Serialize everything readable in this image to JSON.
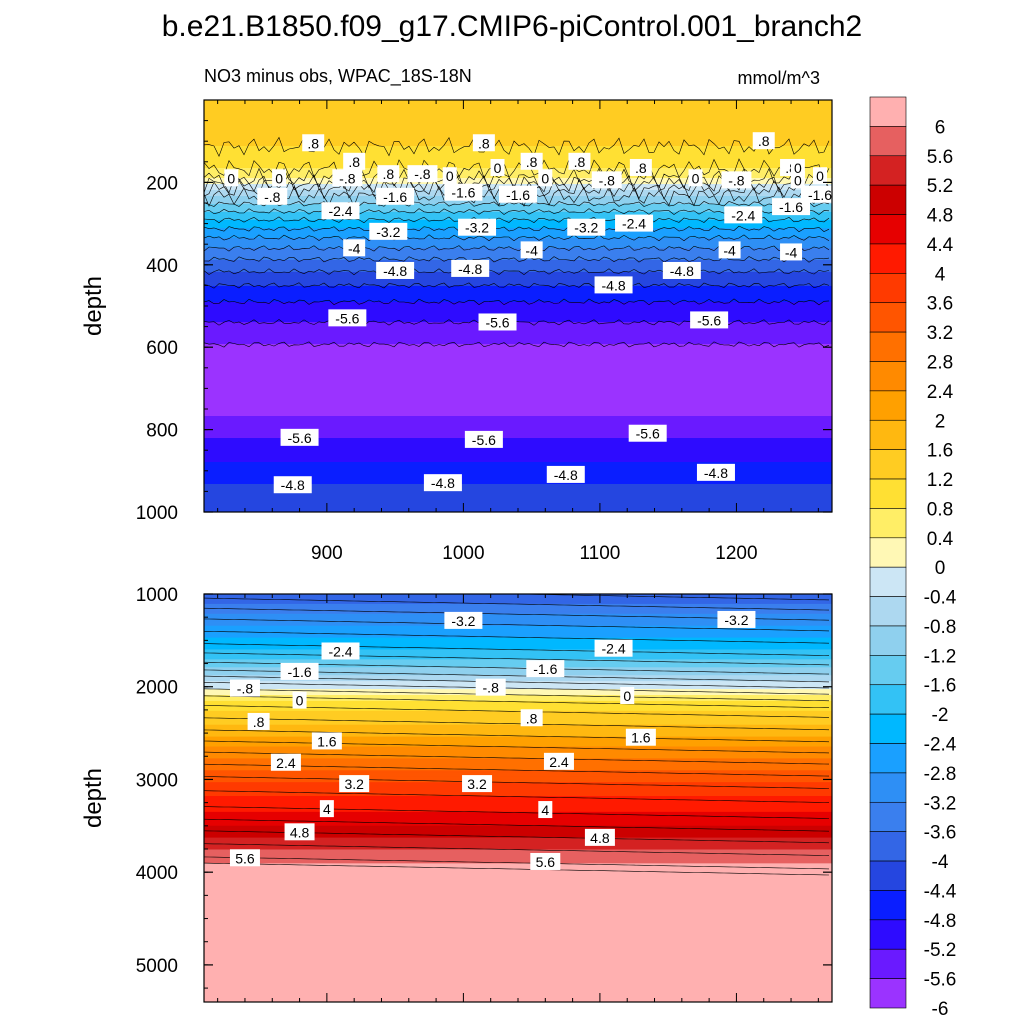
{
  "colors": {
    "palette": [
      "#9B33FF",
      "#6A1AFF",
      "#2E0BFF",
      "#0A1EFF",
      "#2546E0",
      "#3366E6",
      "#3A7FEE",
      "#2E8FF5",
      "#1AA0FF",
      "#00B8FF",
      "#33C2F5",
      "#66CCF0",
      "#8FD0EE",
      "#ADD8F0",
      "#CCE6F5",
      "#FFF8B5",
      "#FFEE66",
      "#FFE033",
      "#FFCC22",
      "#FFB810",
      "#FFA000",
      "#FF8A00",
      "#FF7000",
      "#FF5500",
      "#FF3A00",
      "#FF1A00",
      "#E60000",
      "#CC0000",
      "#D42222",
      "#E66060",
      "#FFB0B0"
    ]
  },
  "chart_data": {
    "type": "heatmap",
    "title": "b.e21.B1850.f09_g17.CMIP6-piControl.001_branch2",
    "subtitle_left": "NO3 minus obs, WPAC_18S-18N",
    "subtitle_right": "mmol/m^3",
    "ylabel": "depth",
    "xlim": [
      810,
      1270
    ],
    "x_ticks": [
      "900",
      "1000",
      "1100",
      "1200"
    ],
    "colorbar": {
      "levels": [
        "6",
        "5.6",
        "5.2",
        "4.8",
        "4.4",
        "4",
        "3.6",
        "3.2",
        "2.8",
        "2.4",
        "2",
        "1.6",
        "1.2",
        "0.8",
        "0.4",
        "0",
        "-0.4",
        "-0.8",
        "-1.2",
        "-1.6",
        "-2",
        "-2.4",
        "-2.8",
        "-3.2",
        "-3.6",
        "-4",
        "-4.4",
        "-4.8",
        "-5.2",
        "-5.6",
        "-6"
      ]
    },
    "panels": [
      {
        "name": "upper",
        "ylim": [
          0,
          1000
        ],
        "y_ticks": [
          "200",
          "400",
          "600",
          "800",
          "1000"
        ],
        "profile": [
          {
            "depth": 0,
            "value": 1.0
          },
          {
            "depth": 100,
            "value": 0.9
          },
          {
            "depth": 180,
            "value": 0.3
          },
          {
            "depth": 220,
            "value": -0.9
          },
          {
            "depth": 280,
            "value": -2.2
          },
          {
            "depth": 340,
            "value": -3.3
          },
          {
            "depth": 400,
            "value": -4.2
          },
          {
            "depth": 450,
            "value": -4.8
          },
          {
            "depth": 500,
            "value": -5.3
          },
          {
            "depth": 560,
            "value": -5.75
          },
          {
            "depth": 600,
            "value": -6.05
          },
          {
            "depth": 680,
            "value": -6.2
          },
          {
            "depth": 760,
            "value": -6.05
          },
          {
            "depth": 820,
            "value": -5.6
          },
          {
            "depth": 880,
            "value": -5.2
          },
          {
            "depth": 930,
            "value": -4.8
          },
          {
            "depth": 1000,
            "value": -4.4
          }
        ],
        "contour_labels": [
          {
            "text": ".8",
            "x": 890,
            "d": 105
          },
          {
            "text": ".8",
            "x": 1015,
            "d": 105
          },
          {
            "text": ".8",
            "x": 1050,
            "d": 150
          },
          {
            "text": ".8",
            "x": 1085,
            "d": 150
          },
          {
            "text": ".8",
            "x": 1220,
            "d": 100
          },
          {
            "text": ".8",
            "x": 1240,
            "d": 165
          },
          {
            "text": ".8",
            "x": 920,
            "d": 150
          },
          {
            "text": ".8",
            "x": 945,
            "d": 180
          },
          {
            "text": "-.8",
            "x": 970,
            "d": 180
          },
          {
            "text": ".8",
            "x": 1130,
            "d": 165
          },
          {
            "text": "0",
            "x": 830,
            "d": 190
          },
          {
            "text": "0",
            "x": 865,
            "d": 190
          },
          {
            "text": "0",
            "x": 990,
            "d": 185
          },
          {
            "text": "0",
            "x": 1025,
            "d": 165
          },
          {
            "text": "0",
            "x": 1060,
            "d": 190
          },
          {
            "text": "0",
            "x": 1170,
            "d": 190
          },
          {
            "text": "0",
            "x": 1245,
            "d": 195
          },
          {
            "text": "0",
            "x": 1275,
            "d": 185
          },
          {
            "text": "0",
            "x": 1245,
            "d": 165
          },
          {
            "text": "-.8",
            "x": 1105,
            "d": 195
          },
          {
            "text": "-.8",
            "x": 915,
            "d": 190
          },
          {
            "text": "-.8",
            "x": 860,
            "d": 235
          },
          {
            "text": "-.8",
            "x": 1200,
            "d": 195
          },
          {
            "text": "-1.6",
            "x": 950,
            "d": 235
          },
          {
            "text": "-1.6",
            "x": 1000,
            "d": 225
          },
          {
            "text": "-1.6",
            "x": 1040,
            "d": 230
          },
          {
            "text": "-1.6",
            "x": 1240,
            "d": 260
          },
          {
            "text": "-1.6",
            "x": 1265,
            "d": 230
          },
          {
            "text": "-2.4",
            "x": 910,
            "d": 270
          },
          {
            "text": "-2.4",
            "x": 1125,
            "d": 300
          },
          {
            "text": "-2.4",
            "x": 1205,
            "d": 280
          },
          {
            "text": "-3.2",
            "x": 945,
            "d": 320
          },
          {
            "text": "-3.2",
            "x": 1010,
            "d": 310
          },
          {
            "text": "-3.2",
            "x": 1090,
            "d": 310
          },
          {
            "text": "-4",
            "x": 920,
            "d": 360
          },
          {
            "text": "-4",
            "x": 1050,
            "d": 365
          },
          {
            "text": "-4",
            "x": 1195,
            "d": 365
          },
          {
            "text": "-4",
            "x": 1240,
            "d": 370
          },
          {
            "text": "-4.8",
            "x": 950,
            "d": 415
          },
          {
            "text": "-4.8",
            "x": 1005,
            "d": 410
          },
          {
            "text": "-4.8",
            "x": 1160,
            "d": 415
          },
          {
            "text": "-4.8",
            "x": 1110,
            "d": 450
          },
          {
            "text": "-5.6",
            "x": 915,
            "d": 530
          },
          {
            "text": "-5.6",
            "x": 1025,
            "d": 540
          },
          {
            "text": "-5.6",
            "x": 1180,
            "d": 535
          },
          {
            "text": "-5.6",
            "x": 880,
            "d": 820
          },
          {
            "text": "-5.6",
            "x": 1015,
            "d": 825
          },
          {
            "text": "-5.6",
            "x": 1135,
            "d": 810
          },
          {
            "text": "-4.8",
            "x": 875,
            "d": 935
          },
          {
            "text": "-4.8",
            "x": 985,
            "d": 930
          },
          {
            "text": "-4.8",
            "x": 1075,
            "d": 910
          },
          {
            "text": "-4.8",
            "x": 1185,
            "d": 905
          }
        ]
      },
      {
        "name": "lower",
        "ylim": [
          1000,
          5400
        ],
        "y_ticks": [
          "1000",
          "2000",
          "3000",
          "4000",
          "5000"
        ],
        "profile": [
          {
            "depth": 1000,
            "value": -4.4
          },
          {
            "depth": 1300,
            "value": -3.3
          },
          {
            "depth": 1600,
            "value": -2.4
          },
          {
            "depth": 1850,
            "value": -1.4
          },
          {
            "depth": 2050,
            "value": -0.2
          },
          {
            "depth": 2200,
            "value": 0.6
          },
          {
            "depth": 2500,
            "value": 1.5
          },
          {
            "depth": 2800,
            "value": 2.5
          },
          {
            "depth": 3100,
            "value": 3.4
          },
          {
            "depth": 3400,
            "value": 4.1
          },
          {
            "depth": 3650,
            "value": 4.9
          },
          {
            "depth": 3900,
            "value": 5.6
          },
          {
            "depth": 4000,
            "value": 6.2
          },
          {
            "depth": 5400,
            "value": 6.3
          }
        ],
        "contour_labels": [
          {
            "text": "-3.2",
            "x": 1000,
            "d": 1290
          },
          {
            "text": "-3.2",
            "x": 1200,
            "d": 1280
          },
          {
            "text": "-2.4",
            "x": 910,
            "d": 1620
          },
          {
            "text": "-2.4",
            "x": 1110,
            "d": 1590
          },
          {
            "text": "-1.6",
            "x": 880,
            "d": 1840
          },
          {
            "text": "-1.6",
            "x": 1060,
            "d": 1810
          },
          {
            "text": "-.8",
            "x": 840,
            "d": 2020
          },
          {
            "text": "-.8",
            "x": 1020,
            "d": 2010
          },
          {
            "text": "0",
            "x": 880,
            "d": 2150
          },
          {
            "text": "0",
            "x": 1120,
            "d": 2100
          },
          {
            "text": ".8",
            "x": 850,
            "d": 2380
          },
          {
            "text": ".8",
            "x": 1050,
            "d": 2340
          },
          {
            "text": "1.6",
            "x": 900,
            "d": 2590
          },
          {
            "text": "1.6",
            "x": 1130,
            "d": 2550
          },
          {
            "text": "2.4",
            "x": 870,
            "d": 2820
          },
          {
            "text": "2.4",
            "x": 1070,
            "d": 2810
          },
          {
            "text": "3.2",
            "x": 920,
            "d": 3050
          },
          {
            "text": "3.2",
            "x": 1010,
            "d": 3050
          },
          {
            "text": "4",
            "x": 900,
            "d": 3320
          },
          {
            "text": "4",
            "x": 1060,
            "d": 3330
          },
          {
            "text": "4.8",
            "x": 880,
            "d": 3570
          },
          {
            "text": "4.8",
            "x": 1100,
            "d": 3630
          },
          {
            "text": "5.6",
            "x": 840,
            "d": 3850
          },
          {
            "text": "5.6",
            "x": 1060,
            "d": 3890
          }
        ]
      }
    ]
  }
}
